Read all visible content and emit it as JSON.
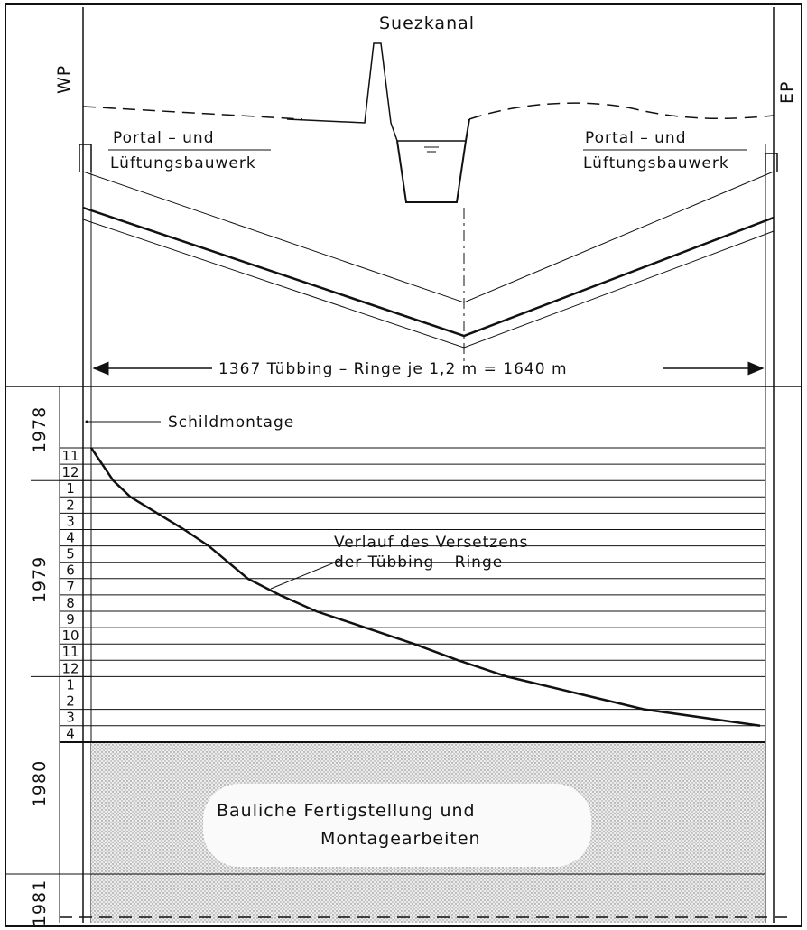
{
  "section": {
    "canal_label": "Suezkanal",
    "west_label": "WP",
    "east_label": "EP",
    "west_structure": [
      "Portal – und",
      "Lüftungsbauwerk"
    ],
    "east_structure": [
      "Portal – und",
      "Lüftungsbauwerk"
    ],
    "length_label": "1367  Tübbing – Ringe  je 1,2 m  = 1640 m"
  },
  "schedule": {
    "shield_label": "Schildmontage",
    "curve_label": [
      "Verlauf des Versetzens",
      "der Tübbing – Ringe"
    ],
    "finish_label": [
      "Bauliche  Fertigstellung  und",
      "Montagearbeiten"
    ],
    "years": [
      {
        "label": "1978"
      },
      {
        "label": "1979"
      },
      {
        "label": "1980"
      },
      {
        "label": "1981"
      }
    ],
    "months": [
      "11",
      "12",
      "1",
      "2",
      "3",
      "4",
      "5",
      "6",
      "7",
      "8",
      "9",
      "10",
      "11",
      "12",
      "1",
      "2",
      "3",
      "4"
    ]
  },
  "chart_data": {
    "type": "line",
    "x_unit": "rings (0 to 1367)",
    "x_total_rings": 1367,
    "x_total_length_m": 1640,
    "ring_length_m": 1.2,
    "series": [
      {
        "name": "Verlauf des Versetzens der Tübbing – Ringe",
        "points": [
          {
            "month": "1978-11 start",
            "rings": 0
          },
          {
            "month": "1979-01",
            "rings": 45
          },
          {
            "month": "1979-02",
            "rings": 80
          },
          {
            "month": "1979-03",
            "rings": 135
          },
          {
            "month": "1979-04",
            "rings": 190
          },
          {
            "month": "1979-05",
            "rings": 240
          },
          {
            "month": "1979-06",
            "rings": 280
          },
          {
            "month": "1979-07",
            "rings": 320
          },
          {
            "month": "1979-08",
            "rings": 385
          },
          {
            "month": "1979-09",
            "rings": 460
          },
          {
            "month": "1979-10",
            "rings": 560
          },
          {
            "month": "1979-11",
            "rings": 660
          },
          {
            "month": "1979-12",
            "rings": 750
          },
          {
            "month": "1980-01",
            "rings": 850
          },
          {
            "month": "1980-02",
            "rings": 990
          },
          {
            "month": "1980-03",
            "rings": 1130
          },
          {
            "month": "1980-04",
            "rings": 1367
          }
        ]
      }
    ]
  }
}
